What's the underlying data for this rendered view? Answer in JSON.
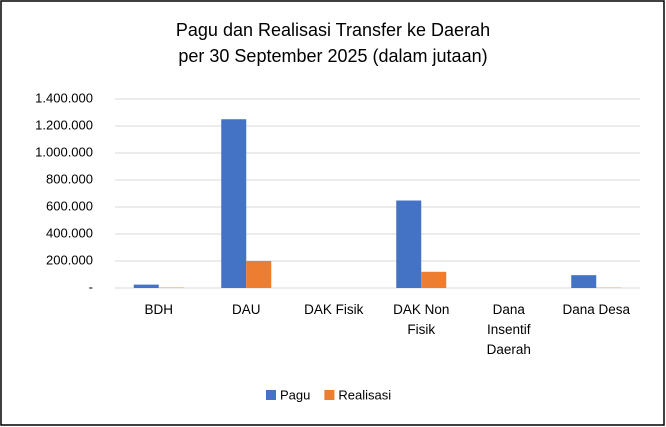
{
  "chart_data": {
    "type": "bar",
    "title": "Pagu dan Realisasi Transfer ke Daerah",
    "subtitle": "per 30 September 2025 (dalam jutaan)",
    "categories": [
      "BDH",
      "DAU",
      "DAK Fisik",
      "DAK Non Fisik",
      "Dana Insentif Daerah",
      "Dana Desa"
    ],
    "series": [
      {
        "name": "Pagu",
        "color": "#4472c4",
        "values": [
          25000,
          1250000,
          0,
          648000,
          0,
          95000
        ]
      },
      {
        "name": "Realisasi",
        "color": "#ed7d31",
        "values": [
          3000,
          200000,
          0,
          120000,
          0,
          2000
        ]
      }
    ],
    "ylim": [
      0,
      1400000
    ],
    "yticks": [
      {
        "value": 0,
        "label": "-"
      },
      {
        "value": 200000,
        "label": "200.000"
      },
      {
        "value": 400000,
        "label": "400.000"
      },
      {
        "value": 600000,
        "label": "600.000"
      },
      {
        "value": 800000,
        "label": "800.000"
      },
      {
        "value": 1000000,
        "label": "1.000.000"
      },
      {
        "value": 1200000,
        "label": "1.200.000"
      },
      {
        "value": 1400000,
        "label": "1.400.000"
      }
    ],
    "grid": true,
    "legend": "bottom"
  }
}
